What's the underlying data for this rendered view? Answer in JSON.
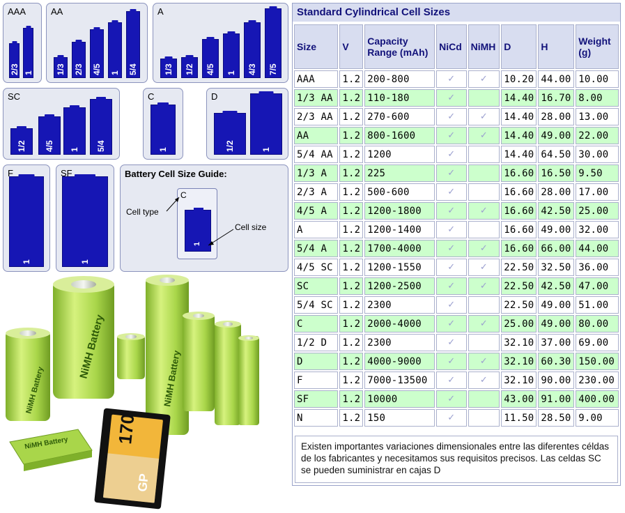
{
  "panels": {
    "aaa": {
      "title": "AAA",
      "cells": [
        "2/3",
        "1"
      ]
    },
    "aa": {
      "title": "AA",
      "cells": [
        "1/3",
        "2/3",
        "4/5",
        "1",
        "5/4"
      ]
    },
    "a": {
      "title": "A",
      "cells": [
        "1/3",
        "1/2",
        "4/5",
        "1",
        "4/3",
        "7/5"
      ]
    },
    "sc": {
      "title": "SC",
      "cells": [
        "1/2",
        "4/5",
        "1",
        "5/4"
      ]
    },
    "c": {
      "title": "C",
      "cells": [
        "1"
      ]
    },
    "d": {
      "title": "D",
      "cells": [
        "1/2",
        "1"
      ]
    },
    "f": {
      "title": "F",
      "cells": [
        "1"
      ]
    },
    "sf": {
      "title": "SF",
      "cells": [
        "1"
      ]
    },
    "guide": {
      "title": "Battery Cell Size Guide:",
      "cell_type_label": "Cell type",
      "cell_size_label": "Cell size",
      "example_type": "C",
      "example_size": "1"
    }
  },
  "table": {
    "title": "Standard Cylindrical Cell Sizes",
    "headers": [
      "Size",
      "V",
      "Capacity Range (mAh)",
      "NiCd",
      "NiMH",
      "D",
      "H",
      "Weight (g)"
    ],
    "check_glyph": "✓",
    "rows": [
      {
        "size": "AAA",
        "v": "1.2",
        "cap": "200-800",
        "nicd": true,
        "nimh": true,
        "d": "10.20",
        "h": "44.00",
        "w": "10.00"
      },
      {
        "size": "1/3 AA",
        "v": "1.2",
        "cap": "110-180",
        "nicd": true,
        "nimh": false,
        "d": "14.40",
        "h": "16.70",
        "w": "8.00"
      },
      {
        "size": "2/3 AA",
        "v": "1.2",
        "cap": "270-600",
        "nicd": true,
        "nimh": true,
        "d": "14.40",
        "h": "28.00",
        "w": "13.00"
      },
      {
        "size": "AA",
        "v": "1.2",
        "cap": "800-1600",
        "nicd": true,
        "nimh": true,
        "d": "14.40",
        "h": "49.00",
        "w": "22.00"
      },
      {
        "size": "5/4 AA",
        "v": "1.2",
        "cap": "1200",
        "nicd": true,
        "nimh": false,
        "d": "14.40",
        "h": "64.50",
        "w": "30.00"
      },
      {
        "size": "1/3 A",
        "v": "1.2",
        "cap": "225",
        "nicd": true,
        "nimh": false,
        "d": "16.60",
        "h": "16.50",
        "w": "9.50"
      },
      {
        "size": "2/3 A",
        "v": "1.2",
        "cap": "500-600",
        "nicd": true,
        "nimh": false,
        "d": "16.60",
        "h": "28.00",
        "w": "17.00"
      },
      {
        "size": "4/5 A",
        "v": "1.2",
        "cap": "1200-1800",
        "nicd": true,
        "nimh": true,
        "d": "16.60",
        "h": "42.50",
        "w": "25.00"
      },
      {
        "size": "A",
        "v": "1.2",
        "cap": "1200-1400",
        "nicd": true,
        "nimh": false,
        "d": "16.60",
        "h": "49.00",
        "w": "32.00"
      },
      {
        "size": "5/4 A",
        "v": "1.2",
        "cap": "1700-4000",
        "nicd": true,
        "nimh": true,
        "d": "16.60",
        "h": "66.00",
        "w": "44.00"
      },
      {
        "size": "4/5 SC",
        "v": "1.2",
        "cap": "1200-1550",
        "nicd": true,
        "nimh": true,
        "d": "22.50",
        "h": "32.50",
        "w": "36.00"
      },
      {
        "size": "SC",
        "v": "1.2",
        "cap": "1200-2500",
        "nicd": true,
        "nimh": true,
        "d": "22.50",
        "h": "42.50",
        "w": "47.00"
      },
      {
        "size": "5/4 SC",
        "v": "1.2",
        "cap": "2300",
        "nicd": true,
        "nimh": false,
        "d": "22.50",
        "h": "49.00",
        "w": "51.00"
      },
      {
        "size": "C",
        "v": "1.2",
        "cap": "2000-4000",
        "nicd": true,
        "nimh": true,
        "d": "25.00",
        "h": "49.00",
        "w": "80.00"
      },
      {
        "size": "1/2 D",
        "v": "1.2",
        "cap": "2300",
        "nicd": true,
        "nimh": false,
        "d": "32.10",
        "h": "37.00",
        "w": "69.00"
      },
      {
        "size": "D",
        "v": "1.2",
        "cap": "4000-9000",
        "nicd": true,
        "nimh": true,
        "d": "32.10",
        "h": "60.30",
        "w": "150.00"
      },
      {
        "size": "F",
        "v": "1.2",
        "cap": "7000-13500",
        "nicd": true,
        "nimh": true,
        "d": "32.10",
        "h": "90.00",
        "w": "230.00"
      },
      {
        "size": "SF",
        "v": "1.2",
        "cap": "10000",
        "nicd": true,
        "nimh": false,
        "d": "43.00",
        "h": "91.00",
        "w": "400.00"
      },
      {
        "size": "N",
        "v": "1.2",
        "cap": "150",
        "nicd": true,
        "nimh": false,
        "d": "11.50",
        "h": "28.50",
        "w": "9.00"
      }
    ],
    "note": "Existen importantes variaciones dimensionales entre las diferentes céldas de los fabricantes y necesitamos sus requisitos precisos. Las celdas SC se pueden suministrar en cajas D"
  },
  "photo": {
    "battery_brand": "GP",
    "battery_text": "NiMH Battery",
    "nine_volt_value": "170",
    "colors": {
      "cell_green": "#b6e35a",
      "cell_blue": "#1616b4",
      "label_green_row": "#ccffcc"
    }
  }
}
